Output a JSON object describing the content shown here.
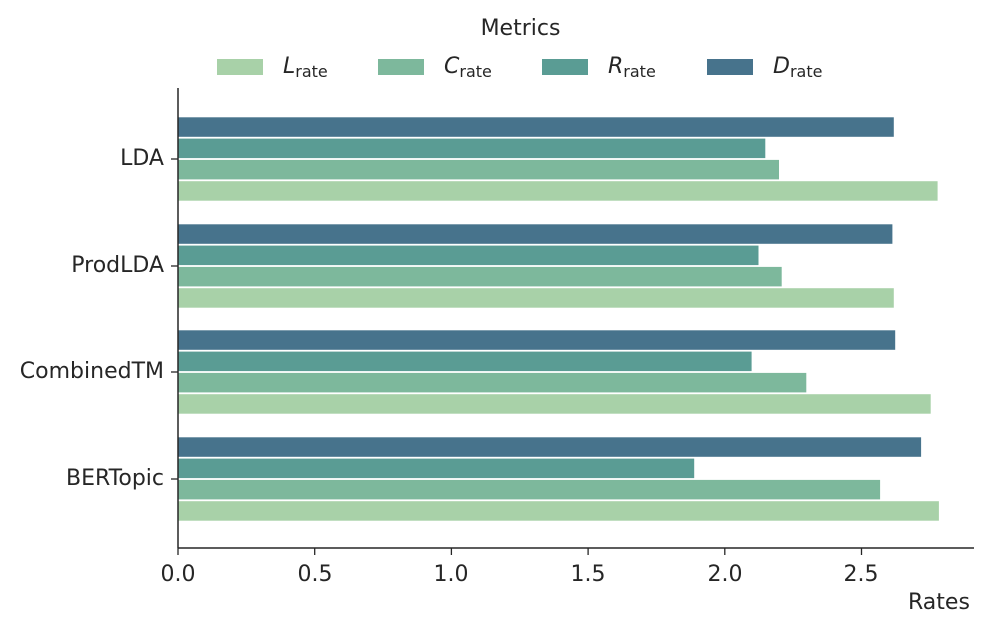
{
  "chart_data": {
    "type": "bar",
    "orientation": "horizontal",
    "categories": [
      "LDA",
      "ProdLDA",
      "CombinedTM",
      "BERTopic"
    ],
    "series": [
      {
        "name": "D",
        "sub": "rate",
        "color": "#47738c",
        "values": [
          2.62,
          2.615,
          2.625,
          2.72
        ]
      },
      {
        "name": "R",
        "sub": "rate",
        "color": "#5a9c94",
        "values": [
          2.15,
          2.125,
          2.1,
          1.89
        ]
      },
      {
        "name": "C",
        "sub": "rate",
        "color": "#7db89c",
        "values": [
          2.2,
          2.21,
          2.3,
          2.57
        ]
      },
      {
        "name": "L",
        "sub": "rate",
        "color": "#a8d1a8",
        "values": [
          2.78,
          2.62,
          2.755,
          2.785
        ]
      }
    ],
    "legend_order": [
      "L",
      "C",
      "R",
      "D"
    ],
    "legend_title": "Metrics",
    "xlabel": "Rates",
    "xlim": [
      0,
      2.92
    ],
    "xticks": [
      "0.0",
      "0.5",
      "1.0",
      "1.5",
      "2.0",
      "2.5"
    ],
    "legend_position": "top-center",
    "grid": false
  }
}
